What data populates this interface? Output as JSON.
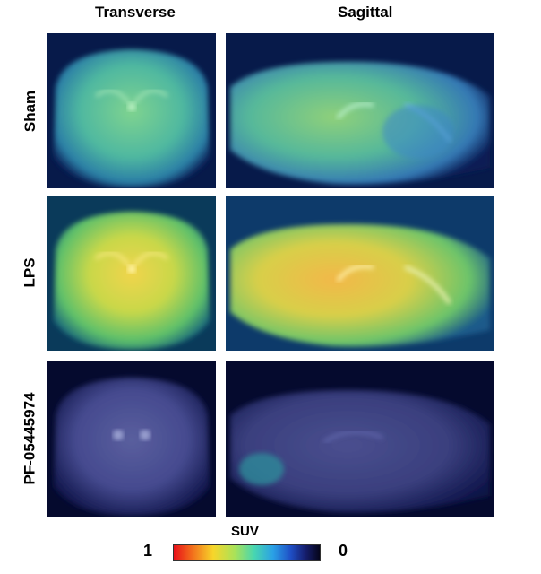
{
  "columns": {
    "transverse": "Transverse",
    "sagittal": "Sagittal"
  },
  "rows": [
    {
      "label": "Sham"
    },
    {
      "label": "LPS"
    },
    {
      "label": "PF-05445974"
    }
  ],
  "colorbar": {
    "title": "SUV",
    "left_label": "1",
    "right_label": "0"
  },
  "colors": {
    "background": "#000322",
    "sham_tint": "#4fb8a0",
    "lps_tint": "#c9d84a",
    "pf_tint": "#454a8f"
  }
}
